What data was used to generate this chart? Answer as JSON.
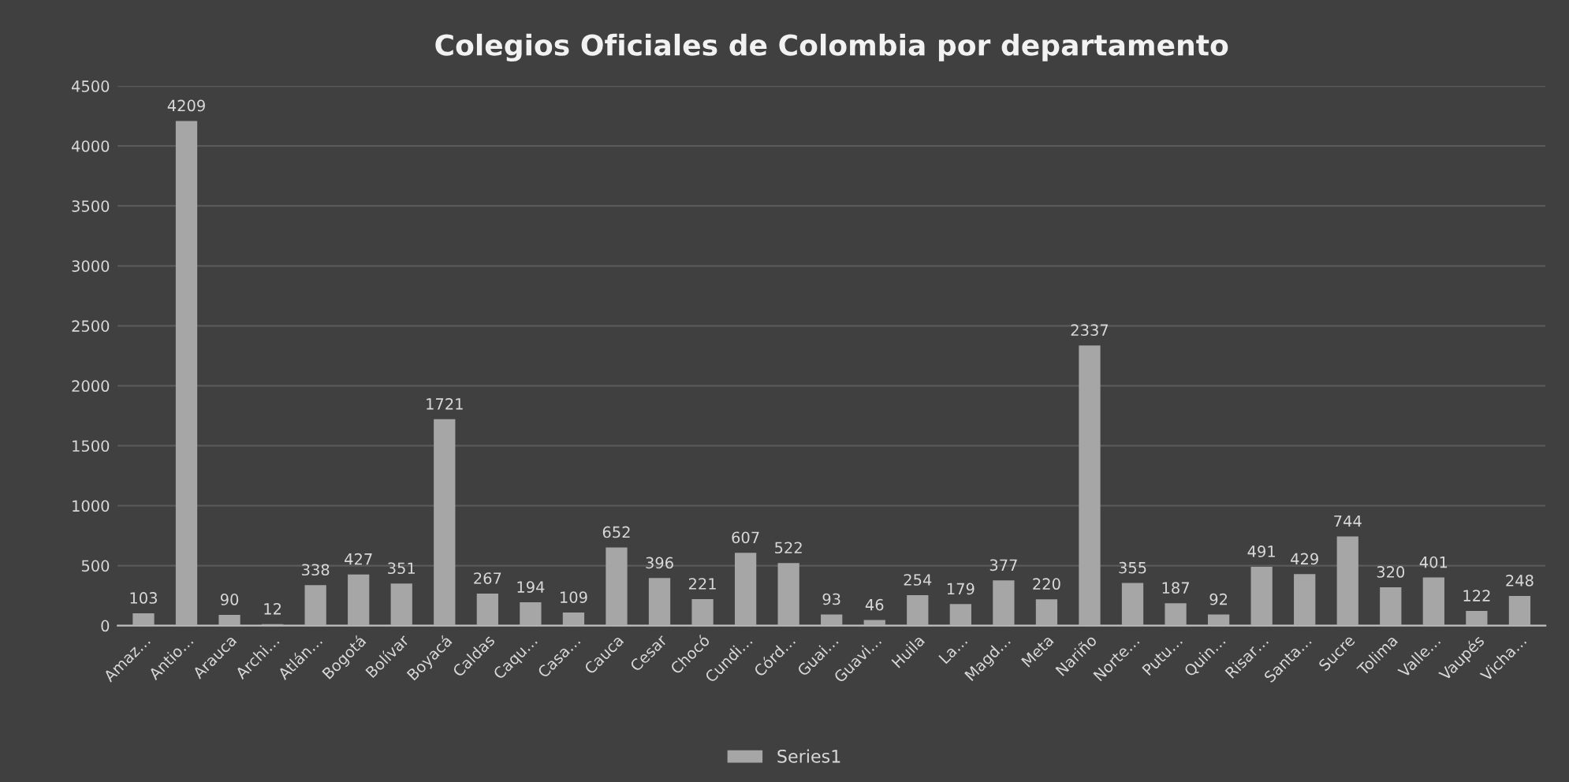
{
  "chart_data": {
    "type": "bar",
    "title": "Colegios Oficiales de Colombia por departamento",
    "categories": [
      "Amaz…",
      "Antio…",
      "Arauca",
      "Archi…",
      "Atlán…",
      "Bogotá",
      "Bolívar",
      "Boyacá",
      "Caldas",
      "Caqu…",
      "Casa…",
      "Cauca",
      "Cesar",
      "Chocó",
      "Cundi…",
      "Córd…",
      "Guai…",
      "Guavi…",
      "Huila",
      "La…",
      "Magd…",
      "Meta",
      "Nariño",
      "Norte…",
      "Putu…",
      "Quin…",
      "Risar…",
      "Santa…",
      "Sucre",
      "Tolima",
      "Valle…",
      "Vaupés",
      "Vicha…"
    ],
    "series": [
      {
        "name": "Series1",
        "color": "#a6a6a6",
        "values": [
          103,
          4209,
          90,
          12,
          338,
          427,
          351,
          1721,
          267,
          194,
          109,
          652,
          396,
          221,
          607,
          522,
          93,
          46,
          254,
          179,
          377,
          220,
          2337,
          355,
          187,
          92,
          491,
          429,
          744,
          320,
          401,
          122,
          248
        ]
      }
    ],
    "ylim": [
      0,
      4500
    ],
    "yticks": [
      0,
      500,
      1000,
      1500,
      2000,
      2500,
      3000,
      3500,
      4000,
      4500
    ],
    "grid": "y",
    "data_labels": true,
    "legend": "bottom"
  }
}
